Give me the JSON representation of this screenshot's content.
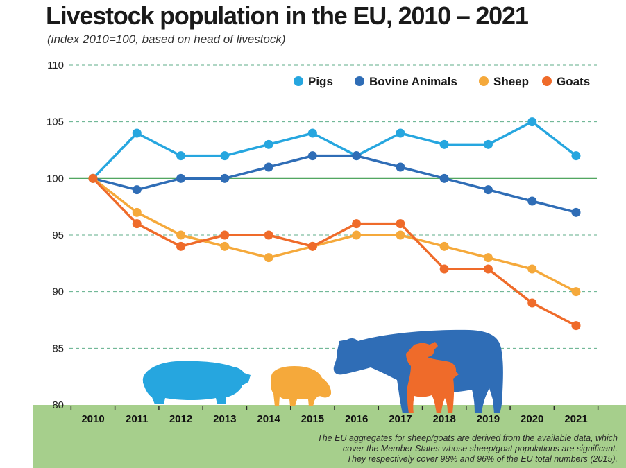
{
  "header": {
    "title": "Livestock population in the EU, 2010 – 2021",
    "subtitle": "(index 2010=100, based on head of livestock)"
  },
  "footnote": {
    "lines": [
      "The EU aggregates for sheep/goats are derived from the available data, which",
      "cover the Member States whose sheep/goat populations are significant.",
      "They respectively cover 98% and 96% of the EU total numbers (2015)."
    ]
  },
  "colors": {
    "pigs": "#26a6df",
    "bovine": "#2f6db6",
    "sheep": "#f5a93b",
    "goats": "#ef6b2a",
    "grid": "#5fae8a",
    "baseline": "#3a9a4a",
    "ground": "#a6cf8c"
  },
  "illustrations": [
    "pig-silhouette",
    "sheep-silhouette",
    "cow-silhouette",
    "goat-silhouette"
  ],
  "chart_data": {
    "type": "line",
    "title": "Livestock population in the EU, 2010 – 2021",
    "subtitle": "(index 2010=100, based on head of livestock)",
    "xlabel": "",
    "ylabel": "",
    "x": [
      "2010",
      "2011",
      "2012",
      "2013",
      "2014",
      "2015",
      "2016",
      "2017",
      "2018",
      "2019",
      "2020",
      "2021"
    ],
    "ylim": [
      80,
      110
    ],
    "yticks": [
      80,
      85,
      90,
      95,
      100,
      105,
      110
    ],
    "grid": "horizontal dashed",
    "legend_position": "top-right",
    "series": [
      {
        "name": "Pigs",
        "color": "#26a6df",
        "values": [
          100,
          104,
          102,
          102,
          103,
          104,
          102,
          104,
          103,
          103,
          105,
          102
        ]
      },
      {
        "name": "Bovine Animals",
        "color": "#2f6db6",
        "values": [
          100,
          99,
          100,
          100,
          101,
          102,
          102,
          101,
          100,
          99,
          98,
          97
        ]
      },
      {
        "name": "Sheep",
        "color": "#f5a93b",
        "values": [
          100,
          97,
          95,
          94,
          93,
          94,
          95,
          95,
          94,
          93,
          92,
          90
        ]
      },
      {
        "name": "Goats",
        "color": "#ef6b2a",
        "values": [
          100,
          96,
          94,
          95,
          95,
          94,
          96,
          96,
          92,
          92,
          89,
          87
        ]
      }
    ]
  }
}
